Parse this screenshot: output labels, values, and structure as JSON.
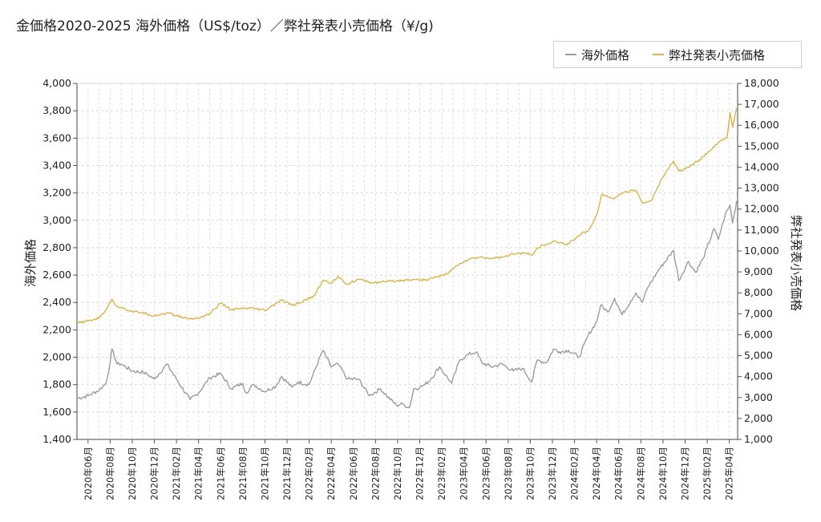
{
  "chart_data": {
    "type": "line",
    "title": "金価格2020-2025 海外価格（US$/toz）／弊社発表小売価格（¥/g)",
    "left_axis_label": "海外価格",
    "right_axis_label": "弊社発表小売価格",
    "left_ylim": [
      1400,
      4000
    ],
    "right_ylim": [
      1000,
      18000
    ],
    "left_ticks": [
      "1,400",
      "1,600",
      "1,800",
      "2,000",
      "2,200",
      "2,400",
      "2,600",
      "2,800",
      "3,000",
      "3,200",
      "3,400",
      "3,600",
      "3,800",
      "4,000"
    ],
    "right_ticks": [
      "1,000",
      "2,000",
      "3,000",
      "4,000",
      "5,000",
      "6,000",
      "7,000",
      "8,000",
      "9,000",
      "10,000",
      "11,000",
      "12,000",
      "13,000",
      "14,000",
      "15,000",
      "16,000",
      "17,000",
      "18,000"
    ],
    "x_labels": [
      "2020年06月",
      "2020年08月",
      "2020年10月",
      "2020年12月",
      "2021年02月",
      "2021年04月",
      "2021年06月",
      "2021年08月",
      "2021年10月",
      "2021年12月",
      "2022年02月",
      "2022年04月",
      "2022年06月",
      "2022年08月",
      "2022年10月",
      "2022年12月",
      "2023年02月",
      "2023年04月",
      "2023年06月",
      "2023年08月",
      "2023年10月",
      "2023年12月",
      "2024年02月",
      "2024年04月",
      "2024年06月",
      "2024年08月",
      "2024年10月",
      "2024年12月",
      "2025年02月",
      "2025年04月"
    ],
    "grid": true,
    "legend_position": "top-right",
    "series": [
      {
        "name": "海外価格",
        "axis": "left",
        "color": "#9a9ca3",
        "x": [
          "2020-05-01",
          "2020-06-01",
          "2020-07-01",
          "2020-07-20",
          "2020-08-01",
          "2020-08-06",
          "2020-08-20",
          "2020-09-01",
          "2020-10-01",
          "2020-11-01",
          "2020-11-15",
          "2020-12-01",
          "2021-01-05",
          "2021-02-01",
          "2021-03-08",
          "2021-04-01",
          "2021-05-01",
          "2021-06-01",
          "2021-06-30",
          "2021-08-01",
          "2021-08-09",
          "2021-09-01",
          "2021-09-30",
          "2021-11-01",
          "2021-11-16",
          "2021-12-15",
          "2022-01-01",
          "2022-01-31",
          "2022-03-08",
          "2022-04-01",
          "2022-04-20",
          "2022-05-15",
          "2022-06-15",
          "2022-07-15",
          "2022-08-15",
          "2022-09-01",
          "2022-09-28",
          "2022-10-15",
          "2022-11-03",
          "2022-11-15",
          "2022-12-01",
          "2022-12-15",
          "2023-01-01",
          "2023-01-25",
          "2023-02-28",
          "2023-03-20",
          "2023-04-13",
          "2023-05-04",
          "2023-05-20",
          "2023-06-15",
          "2023-07-15",
          "2023-08-15",
          "2023-09-10",
          "2023-10-05",
          "2023-10-20",
          "2023-11-15",
          "2023-12-04",
          "2023-12-20",
          "2024-01-15",
          "2024-02-14",
          "2024-03-08",
          "2024-04-01",
          "2024-04-12",
          "2024-05-01",
          "2024-05-20",
          "2024-06-10",
          "2024-07-17",
          "2024-08-05",
          "2024-08-20",
          "2024-09-20",
          "2024-10-30",
          "2024-11-14",
          "2024-12-10",
          "2024-12-30",
          "2025-01-20",
          "2025-02-20",
          "2025-03-01",
          "2025-03-20",
          "2025-04-03",
          "2025-04-10",
          "2025-04-21"
        ],
        "values": [
          1700,
          1720,
          1760,
          1810,
          1960,
          2060,
          1950,
          1950,
          1900,
          1890,
          1870,
          1840,
          1950,
          1840,
          1690,
          1740,
          1850,
          1880,
          1770,
          1810,
          1740,
          1800,
          1750,
          1790,
          1860,
          1780,
          1820,
          1800,
          2050,
          1930,
          1950,
          1840,
          1840,
          1720,
          1770,
          1720,
          1650,
          1660,
          1630,
          1770,
          1780,
          1800,
          1840,
          1930,
          1810,
          1980,
          2020,
          2040,
          1960,
          1930,
          1950,
          1900,
          1920,
          1820,
          1980,
          1960,
          2060,
          2040,
          2050,
          2000,
          2160,
          2260,
          2380,
          2330,
          2430,
          2310,
          2470,
          2400,
          2510,
          2640,
          2780,
          2560,
          2700,
          2620,
          2720,
          2940,
          2860,
          3040,
          3110,
          2980,
          3140
        ]
      },
      {
        "name": "弊社発表小売価格",
        "axis": "right",
        "color": "#d8b54a",
        "x": [
          "2020-05-01",
          "2020-06-01",
          "2020-07-01",
          "2020-07-20",
          "2020-08-06",
          "2020-08-20",
          "2020-09-01",
          "2020-10-01",
          "2020-11-01",
          "2020-12-01",
          "2021-01-05",
          "2021-02-01",
          "2021-03-08",
          "2021-04-01",
          "2021-05-01",
          "2021-06-01",
          "2021-06-30",
          "2021-08-01",
          "2021-09-01",
          "2021-10-01",
          "2021-11-16",
          "2021-12-15",
          "2022-01-15",
          "2022-02-15",
          "2022-03-08",
          "2022-04-01",
          "2022-04-20",
          "2022-05-15",
          "2022-06-15",
          "2022-07-15",
          "2022-08-15",
          "2022-09-15",
          "2022-10-15",
          "2022-11-15",
          "2022-12-15",
          "2023-01-15",
          "2023-02-15",
          "2023-03-20",
          "2023-04-15",
          "2023-05-15",
          "2023-06-15",
          "2023-07-15",
          "2023-08-15",
          "2023-09-15",
          "2023-10-05",
          "2023-10-20",
          "2023-11-15",
          "2023-12-10",
          "2024-01-10",
          "2024-02-10",
          "2024-03-10",
          "2024-04-01",
          "2024-04-15",
          "2024-05-15",
          "2024-06-15",
          "2024-07-17",
          "2024-08-05",
          "2024-08-30",
          "2024-09-30",
          "2024-10-30",
          "2024-11-14",
          "2024-12-10",
          "2025-01-10",
          "2025-02-10",
          "2025-03-10",
          "2025-03-25",
          "2025-04-03",
          "2025-04-10",
          "2025-04-21"
        ],
        "values": [
          6550,
          6650,
          6800,
          7200,
          7700,
          7350,
          7300,
          7100,
          7050,
          6900,
          7050,
          6900,
          6750,
          6800,
          7000,
          7500,
          7200,
          7250,
          7250,
          7150,
          7650,
          7400,
          7600,
          7850,
          8600,
          8450,
          8800,
          8400,
          8650,
          8500,
          8500,
          8550,
          8600,
          8650,
          8600,
          8750,
          8900,
          9400,
          9600,
          9700,
          9650,
          9700,
          9850,
          9900,
          9800,
          10150,
          10300,
          10450,
          10300,
          10700,
          11000,
          11700,
          12700,
          12500,
          12800,
          12900,
          12300,
          12400,
          13500,
          14300,
          13800,
          14000,
          14350,
          14800,
          15300,
          15400,
          16600,
          15900,
          16800
        ]
      }
    ]
  }
}
